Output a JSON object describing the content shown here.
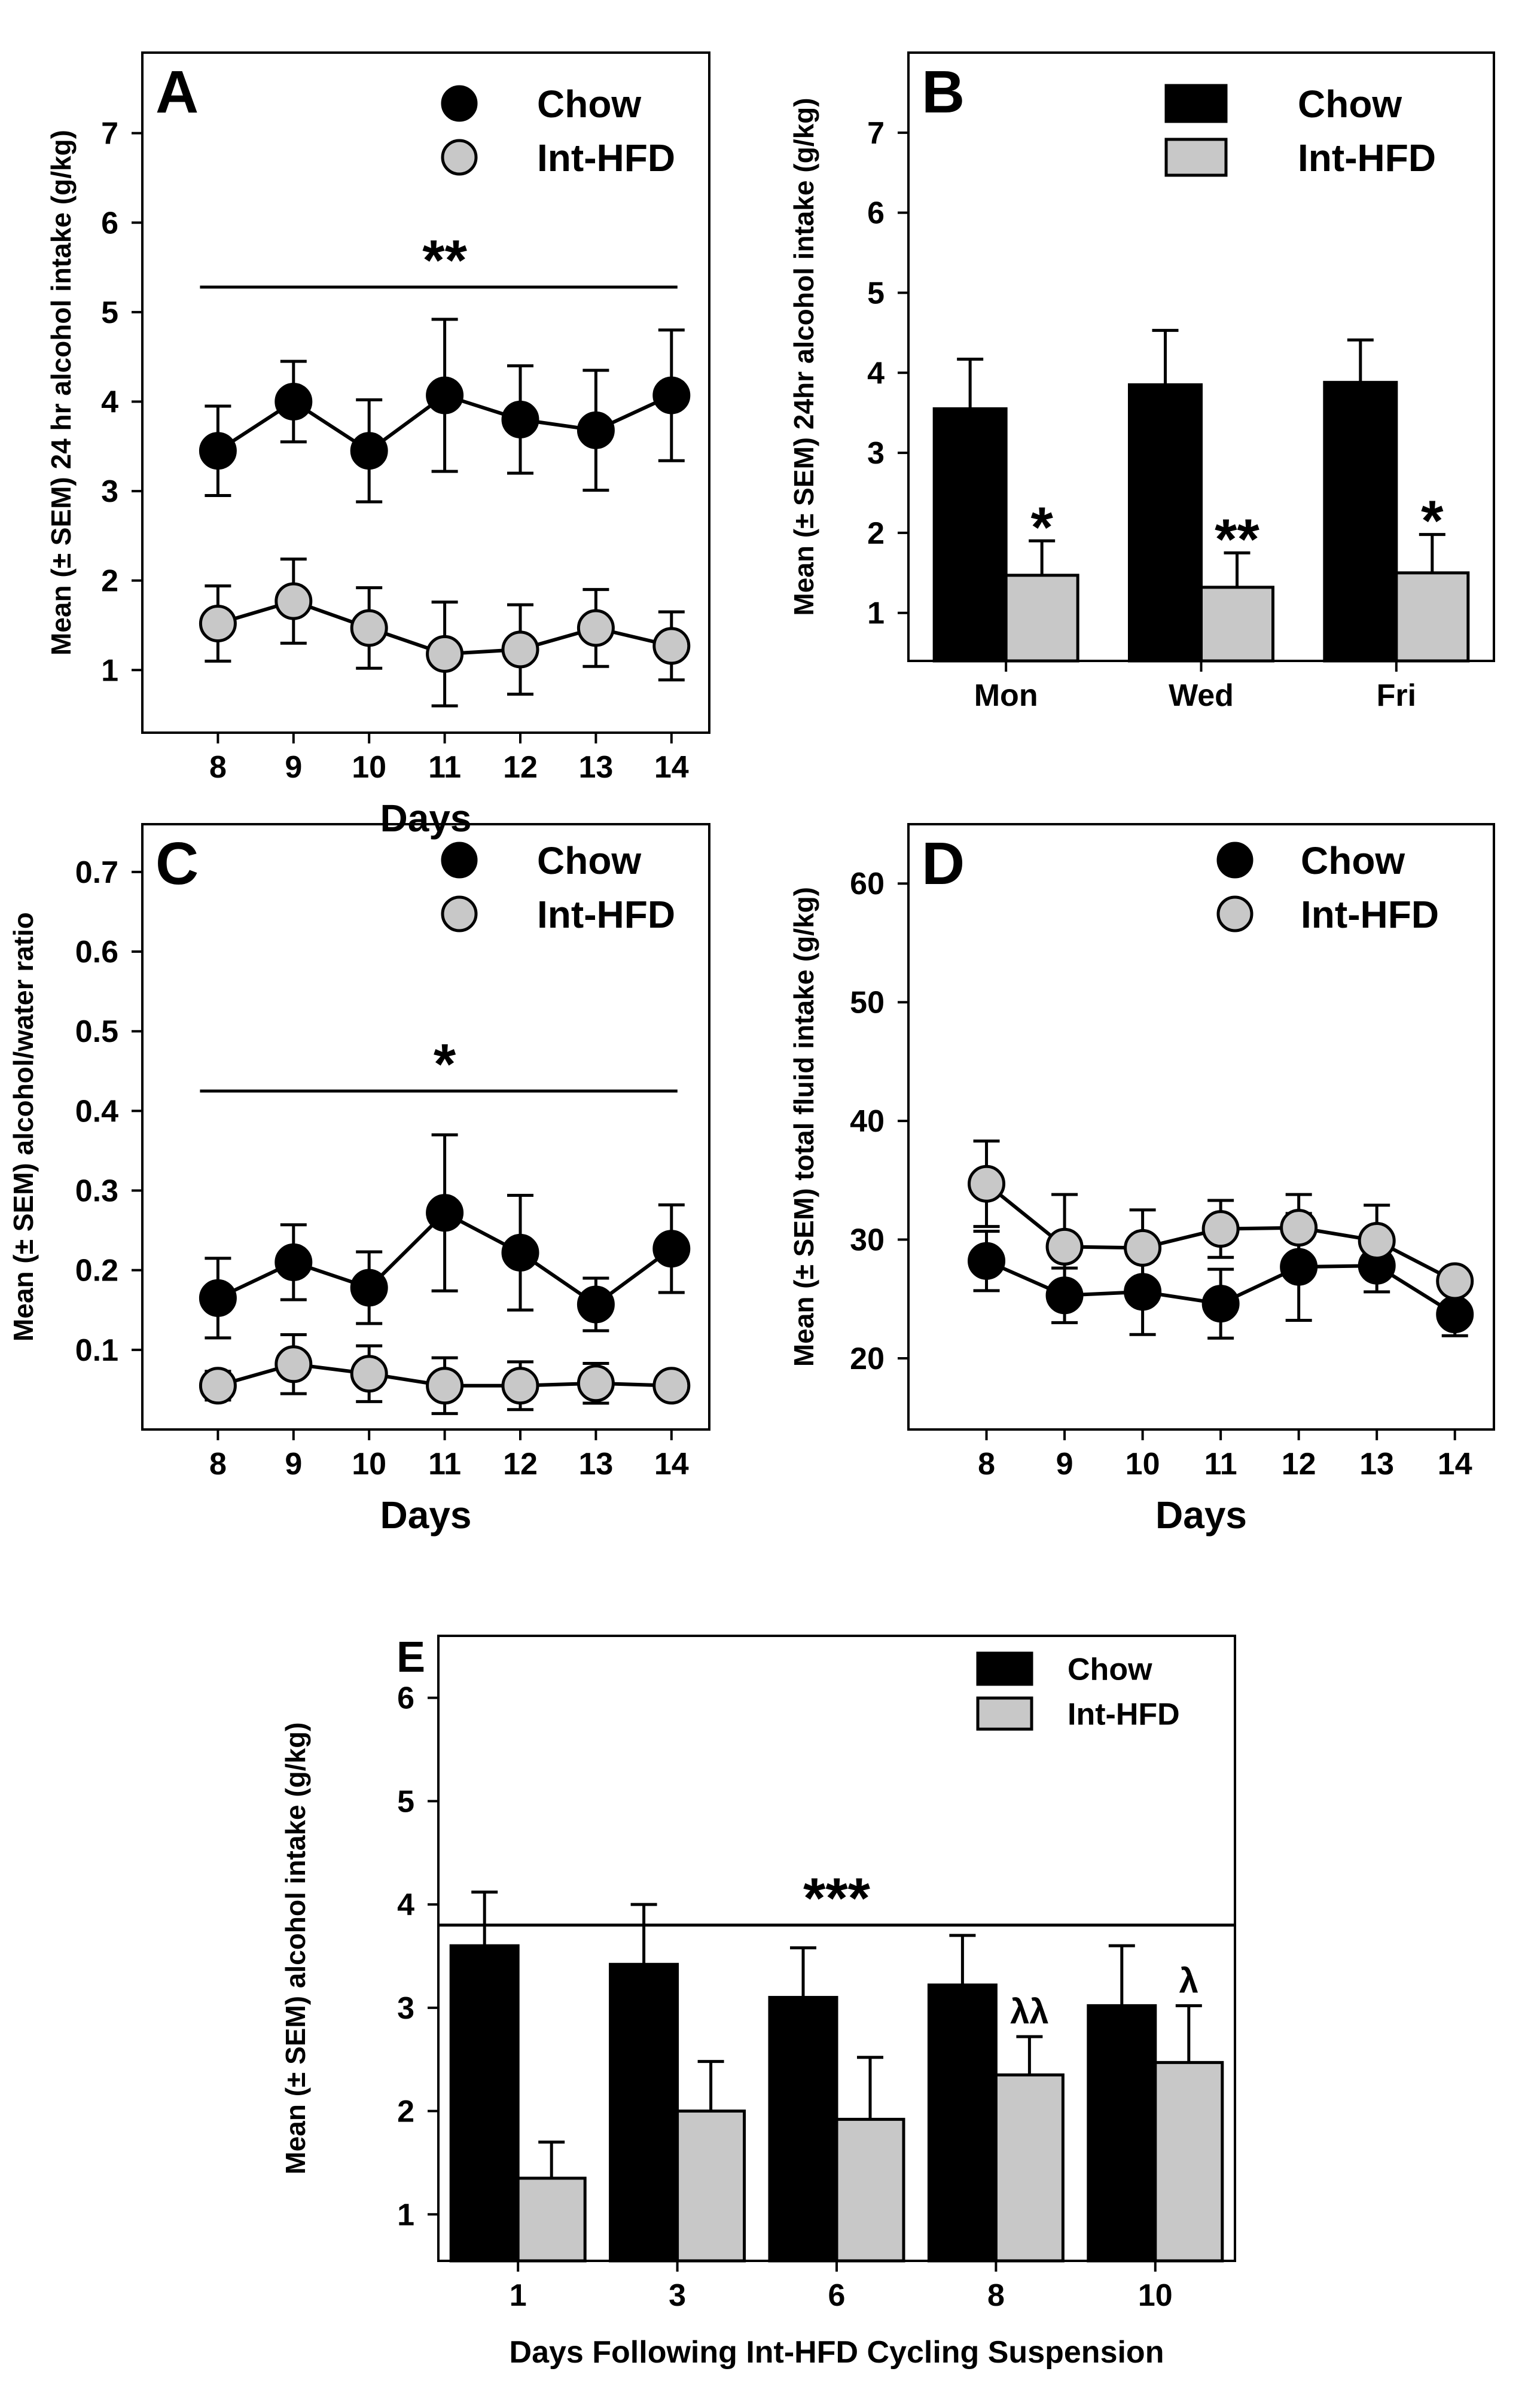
{
  "colors": {
    "chow": "#000000",
    "hfd": "#c8c8c8",
    "axis": "#000000",
    "background": "#ffffff"
  },
  "chart_data": [
    {
      "id": "A",
      "panel_label": "A",
      "type": "line",
      "xlabel": "Days",
      "ylabel": "Mean (± SEM) 24 hr alcohol intake (g/kg)",
      "x": [
        8,
        9,
        10,
        11,
        12,
        13,
        14
      ],
      "xlim": [
        7,
        14.5
      ],
      "ylim": [
        0.3,
        7.9
      ],
      "yticks": [
        1,
        2,
        3,
        4,
        5,
        6,
        7
      ],
      "series": [
        {
          "name": "Chow",
          "values": [
            3.45,
            4.0,
            3.45,
            4.07,
            3.8,
            3.68,
            4.07
          ],
          "sem": [
            0.5,
            0.45,
            0.57,
            0.85,
            0.6,
            0.67,
            0.73
          ]
        },
        {
          "name": "Int-HFD",
          "values": [
            1.52,
            1.77,
            1.47,
            1.18,
            1.23,
            1.47,
            1.27
          ],
          "sem": [
            0.42,
            0.47,
            0.45,
            0.58,
            0.5,
            0.43,
            0.38
          ]
        }
      ],
      "legend": [
        "Chow",
        "Int-HFD"
      ],
      "legend_position": "top-right",
      "significance": {
        "label": "**",
        "span": [
          8,
          14
        ]
      }
    },
    {
      "id": "B",
      "panel_label": "B",
      "type": "bar",
      "xlabel": "",
      "ylabel": "Mean (± SEM) 24hr alcohol intake (g/kg)",
      "categories": [
        "Mon",
        "Wed",
        "Fri"
      ],
      "ylim": [
        0.4,
        8.0
      ],
      "yticks": [
        1,
        2,
        3,
        4,
        5,
        6,
        7
      ],
      "series": [
        {
          "name": "Chow",
          "values": [
            3.55,
            3.85,
            3.88
          ],
          "sem": [
            0.62,
            0.68,
            0.53
          ]
        },
        {
          "name": "Int-HFD",
          "values": [
            1.47,
            1.32,
            1.5
          ],
          "sem": [
            0.43,
            0.43,
            0.48
          ]
        }
      ],
      "legend": [
        "Chow",
        "Int-HFD"
      ],
      "legend_position": "top-right",
      "annotations": [
        {
          "category": "Mon",
          "label": "*"
        },
        {
          "category": "Wed",
          "label": "**"
        },
        {
          "category": "Fri",
          "label": "*"
        }
      ]
    },
    {
      "id": "C",
      "panel_label": "C",
      "type": "line",
      "xlabel": "Days",
      "ylabel": "Mean (± SEM) alcohol/water ratio",
      "x": [
        8,
        9,
        10,
        11,
        12,
        13,
        14
      ],
      "xlim": [
        7,
        14.5
      ],
      "ylim": [
        0.0,
        0.76
      ],
      "yticks": [
        0.1,
        0.2,
        0.3,
        0.4,
        0.5,
        0.6,
        0.7
      ],
      "ytick_labels": [
        "0.1",
        "0.2",
        "0.3",
        "0.4",
        "0.5",
        "0.6",
        "0.7"
      ],
      "series": [
        {
          "name": "Chow",
          "values": [
            0.165,
            0.21,
            0.178,
            0.272,
            0.222,
            0.157,
            0.227
          ],
          "sem": [
            0.05,
            0.047,
            0.045,
            0.098,
            0.072,
            0.033,
            0.055
          ]
        },
        {
          "name": "Int-HFD",
          "values": [
            0.055,
            0.082,
            0.07,
            0.055,
            0.055,
            0.058,
            0.055
          ],
          "sem": [
            0.018,
            0.037,
            0.035,
            0.035,
            0.03,
            0.025,
            0.012
          ]
        }
      ],
      "legend": [
        "Chow",
        "Int-HFD"
      ],
      "legend_position": "top-right",
      "significance": {
        "label": "*",
        "span": [
          8,
          14
        ]
      }
    },
    {
      "id": "D",
      "panel_label": "D",
      "type": "line",
      "xlabel": "Days",
      "ylabel": "Mean (± SEM) total fluid intake (g/kg)",
      "x": [
        8,
        9,
        10,
        11,
        12,
        13,
        14
      ],
      "xlim": [
        7,
        14.5
      ],
      "ylim": [
        14.0,
        65.0
      ],
      "yticks": [
        20,
        30,
        40,
        50,
        60
      ],
      "series": [
        {
          "name": "Chow",
          "values": [
            28.2,
            25.3,
            25.6,
            24.6,
            27.7,
            27.8,
            23.7
          ],
          "sem": [
            2.5,
            2.3,
            3.6,
            2.9,
            4.5,
            2.2,
            1.8
          ]
        },
        {
          "name": "Int-HFD",
          "values": [
            34.7,
            29.4,
            29.3,
            30.9,
            31.0,
            29.9,
            26.5
          ],
          "sem": [
            3.6,
            4.4,
            3.2,
            2.4,
            2.8,
            3.0,
            0.8
          ]
        }
      ],
      "legend": [
        "Chow",
        "Int-HFD"
      ],
      "legend_position": "top-right"
    },
    {
      "id": "E",
      "panel_label": "E",
      "type": "bar",
      "xlabel": "Days Following Int-HFD Cycling Suspension",
      "ylabel": "Mean (± SEM) alcohol intake (g/kg)",
      "categories": [
        "1",
        "3",
        "6",
        "8",
        "10"
      ],
      "ylim": [
        0.55,
        6.6
      ],
      "yticks": [
        1,
        2,
        3,
        4,
        5,
        6
      ],
      "series": [
        {
          "name": "Chow",
          "values": [
            3.6,
            3.42,
            3.1,
            3.22,
            3.02
          ],
          "sem": [
            0.52,
            0.58,
            0.48,
            0.48,
            0.58
          ]
        },
        {
          "name": "Int-HFD",
          "values": [
            1.35,
            2.0,
            1.92,
            2.35,
            2.47
          ],
          "sem": [
            0.35,
            0.48,
            0.6,
            0.37,
            0.55
          ]
        }
      ],
      "legend": [
        "Chow",
        "Int-HFD"
      ],
      "legend_position": "top-right",
      "significance": {
        "label": "***",
        "span": [
          "1",
          "10"
        ]
      },
      "annotations": [
        {
          "category": "8",
          "label": "λλ"
        },
        {
          "category": "10",
          "label": "λ"
        }
      ]
    }
  ]
}
